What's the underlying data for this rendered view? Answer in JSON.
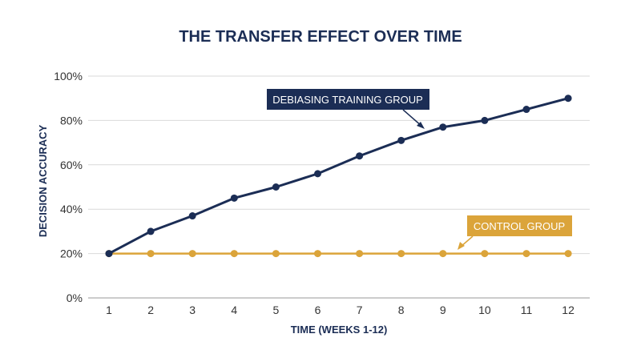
{
  "chart_data": {
    "type": "line",
    "title": "THE TRANSFER EFFECT OVER TIME",
    "xlabel": "TIME (WEEKS 1-12)",
    "ylabel": "DECISION ACCURACY",
    "x": [
      1,
      2,
      3,
      4,
      5,
      6,
      7,
      8,
      9,
      10,
      11,
      12
    ],
    "x_tick_labels": [
      "1",
      "2",
      "3",
      "4",
      "5",
      "6",
      "7",
      "8",
      "9",
      "10",
      "11",
      "12"
    ],
    "ylim": [
      0,
      100
    ],
    "y_ticks": [
      0,
      20,
      40,
      60,
      80,
      100
    ],
    "y_tick_labels": [
      "0%",
      "20%",
      "40%",
      "60%",
      "80%",
      "100%"
    ],
    "grid": true,
    "series": [
      {
        "name": "DEBIASING TRAINING GROUP",
        "color": "#1b2d55",
        "values": [
          20,
          30,
          37,
          45,
          50,
          56,
          64,
          71,
          77,
          80,
          85,
          90
        ]
      },
      {
        "name": "CONTROL GROUP",
        "color": "#dba43a",
        "values": [
          20,
          20,
          20,
          20,
          20,
          20,
          20,
          20,
          20,
          20,
          20,
          20
        ]
      }
    ]
  }
}
